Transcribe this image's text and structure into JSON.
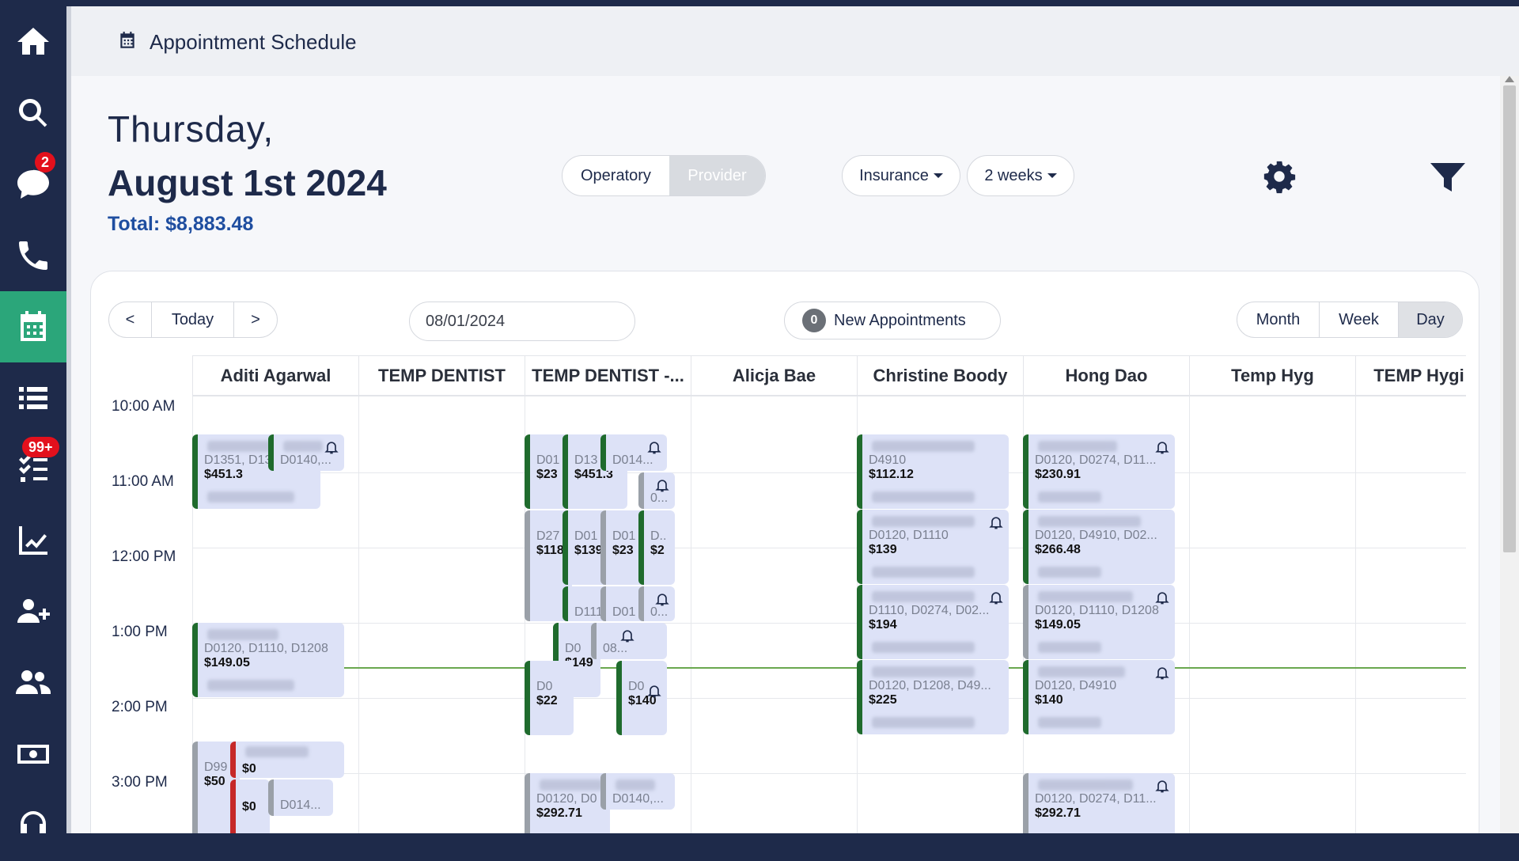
{
  "header": {
    "title": "Appointment Schedule"
  },
  "summary": {
    "day_name": "Thursday,",
    "date": "August 1st 2024",
    "total": "Total: $8,883.48"
  },
  "mode": {
    "operatory": "Operatory",
    "provider": "Provider"
  },
  "insurance": "Insurance",
  "range": "2 weeks",
  "nav": {
    "prev": "<",
    "today": "Today",
    "next": ">"
  },
  "date_value": "08/01/2024",
  "new_appointments": {
    "count": "0",
    "label": "New Appointments"
  },
  "views": {
    "month": "Month",
    "week": "Week",
    "day": "Day"
  },
  "badges": {
    "messages": "2",
    "tasks": "99+"
  },
  "columns": [
    "Aditi Agarwal",
    "TEMP DENTIST",
    "TEMP DENTIST -...",
    "Alicja Bae",
    "Christine Boody",
    "Hong Dao",
    "Temp Hyg",
    "TEMP Hygi"
  ],
  "times": [
    "10:00 AM",
    "11:00 AM",
    "12:00 PM",
    "1:00 PM",
    "2:00 PM",
    "3:00 PM"
  ],
  "appointments": {
    "a1": {
      "codes": "D1351, D13",
      "amount": "$451.3"
    },
    "a2": {
      "codes": "D0140,..."
    },
    "a3": {
      "codes": "D0120, D1110, D1208",
      "amount": "$149.05"
    },
    "a4": {
      "codes": "D99",
      "amount": "$50"
    },
    "a5": {
      "amount": "$0"
    },
    "a6": {
      "amount": "$0"
    },
    "a7": {
      "codes": "D014..."
    },
    "t1": {
      "codes": "D01",
      "amount": "$23"
    },
    "t2": {
      "codes": "D13",
      "amount": "$451.3"
    },
    "t3": {
      "codes": "D014..."
    },
    "t4": {
      "codes": "0..."
    },
    "t5": {
      "codes": "D27",
      "amount": "$118"
    },
    "t6": {
      "codes": "D01",
      "amount": "$139"
    },
    "t7": {
      "codes": "D01",
      "amount": "$23"
    },
    "t8": {
      "codes": "D..",
      "amount": "$2"
    },
    "t9": {
      "codes": "D111"
    },
    "t10": {
      "codes": "D01"
    },
    "t11": {
      "codes": "0..."
    },
    "t12": {
      "codes": "D0",
      "amount": "$149"
    },
    "t13": {
      "codes": "08..."
    },
    "t14": {
      "codes": "D0",
      "amount": "$22"
    },
    "t15": {
      "codes": "D0",
      "amount": "$140"
    },
    "t16": {
      "codes": "D0120, D0",
      "amount": "$292.71"
    },
    "t17": {
      "codes": "D0140,..."
    },
    "c1": {
      "codes": "D4910",
      "amount": "$112.12"
    },
    "c2": {
      "codes": "D0120, D1110",
      "amount": "$139"
    },
    "c3": {
      "codes": "D1110, D0274, D02...",
      "amount": "$194"
    },
    "c4": {
      "codes": "D0120, D1208, D49...",
      "amount": "$225"
    },
    "h1": {
      "codes": "D0120, D0274, D11...",
      "amount": "$230.91"
    },
    "h2": {
      "codes": "D0120, D4910, D02...",
      "amount": "$266.48"
    },
    "h3": {
      "codes": "D0120, D1110, D1208",
      "amount": "$149.05"
    },
    "h4": {
      "codes": "D0120, D4910",
      "amount": "$140"
    },
    "h5": {
      "codes": "D0120, D0274, D11...",
      "amount": "$292.71"
    }
  }
}
